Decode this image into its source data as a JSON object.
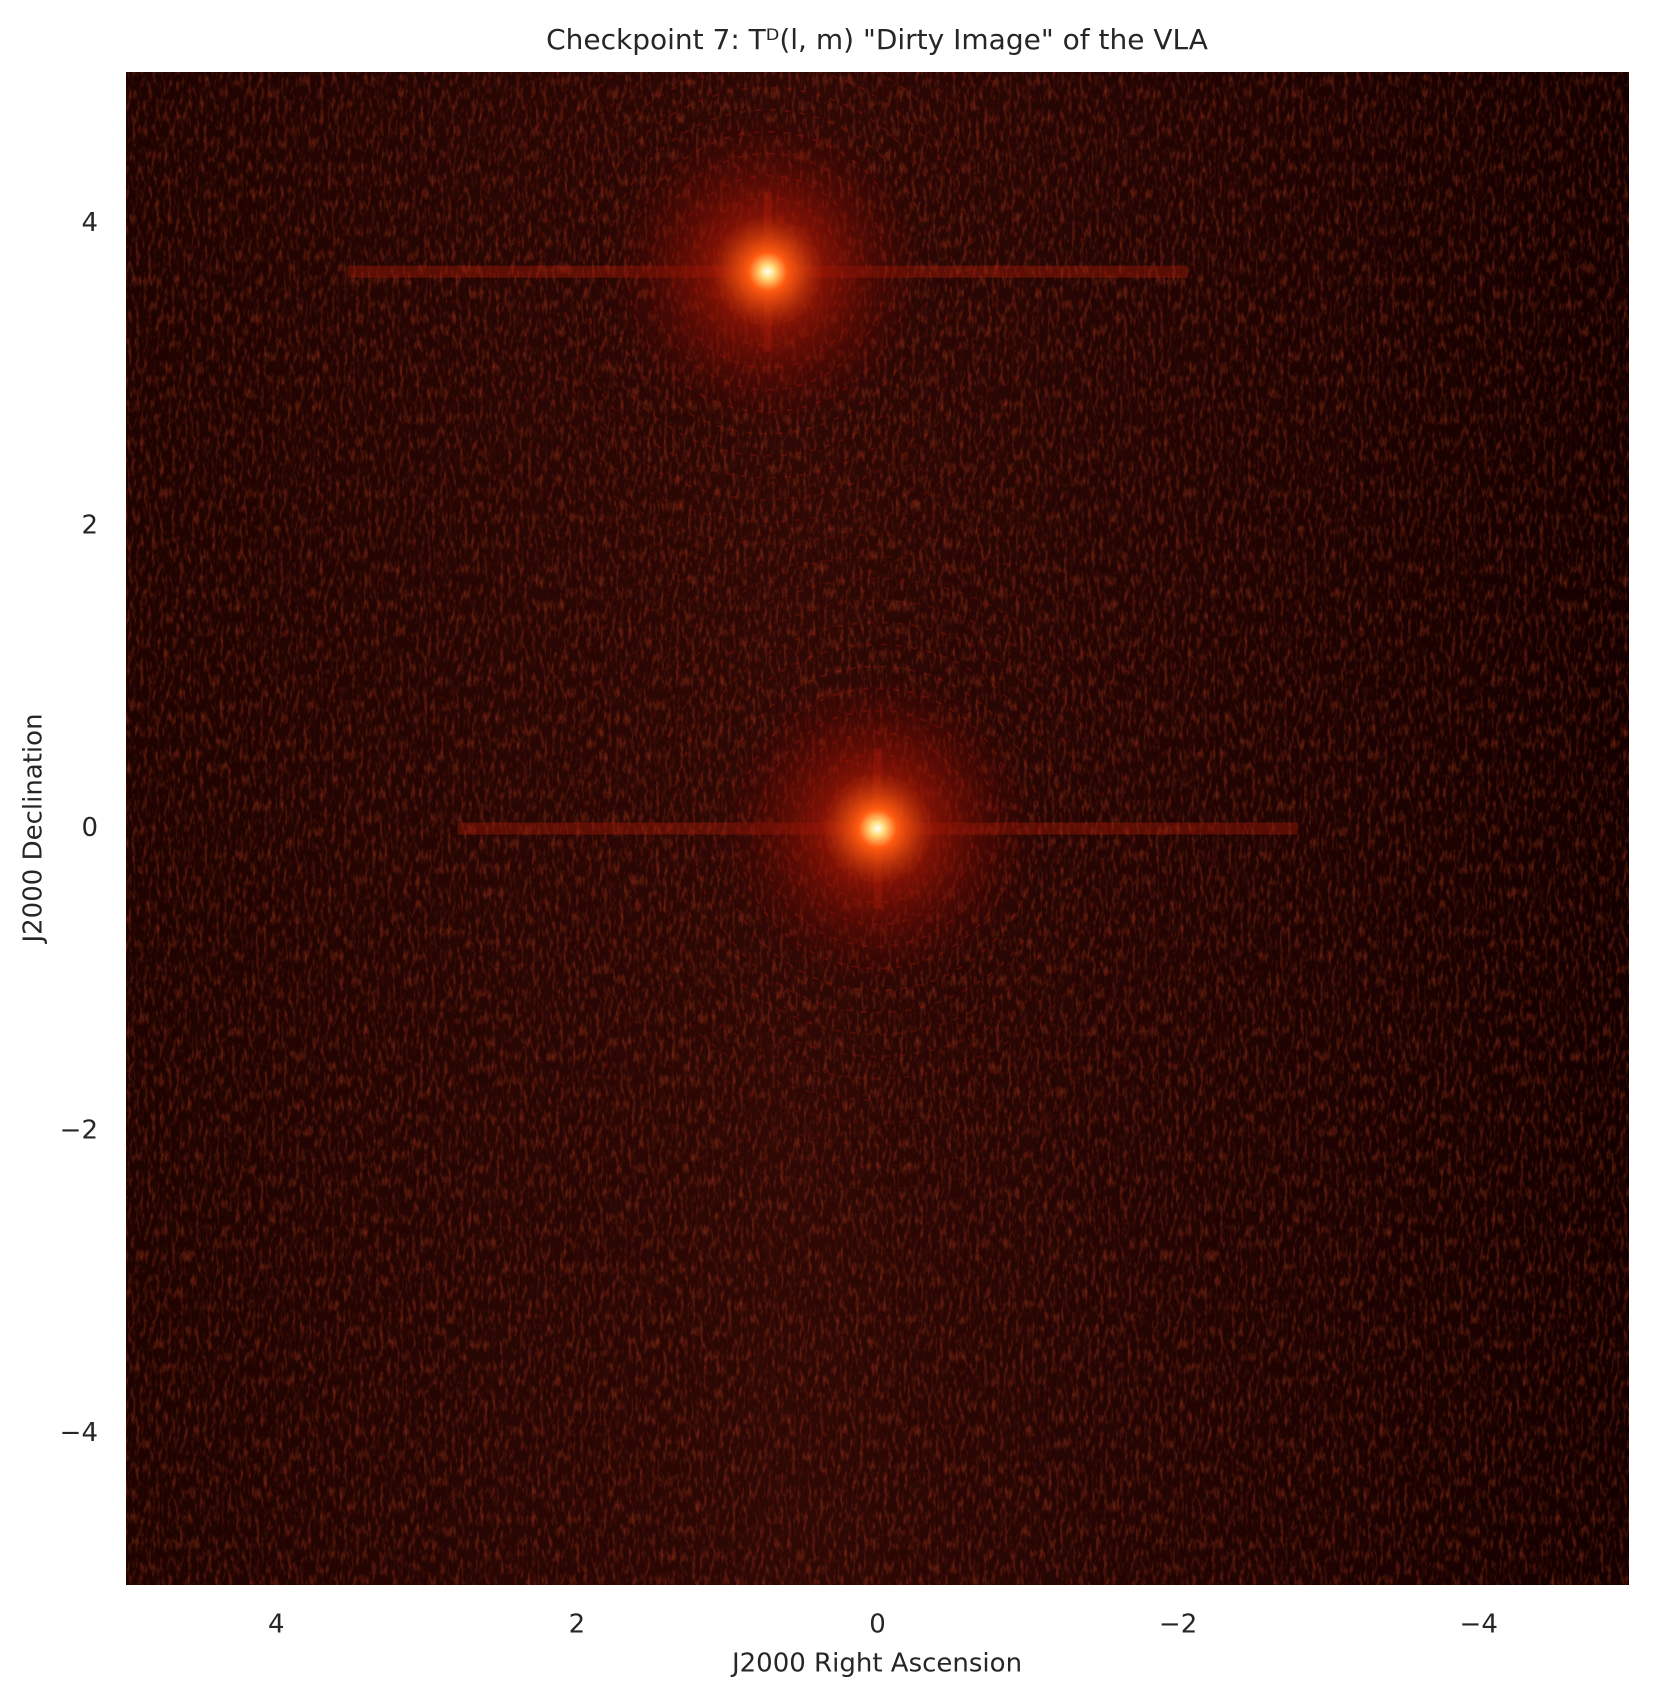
{
  "chart_data": {
    "type": "image",
    "title": "Checkpoint 7: Tᴰ(l, m) \"Dirty Image\" of the VLA",
    "x_label": "J2000 Right Ascension",
    "y_label": "J2000 Declination",
    "x": [
      0,
      0.73
    ],
    "y": [
      0,
      3.68
    ],
    "colormap": "hot",
    "xlim": [
      5,
      -5
    ],
    "ylim": [
      -5,
      5
    ],
    "xticks": [
      4,
      2,
      0,
      {
        "value": -2,
        "label": "−2"
      },
      {
        "value": -4,
        "label": "−4"
      }
    ],
    "yticks": [
      {
        "value": -4,
        "label": "−4"
      },
      {
        "value": -2,
        "label": "−2"
      },
      0,
      2,
      4
    ],
    "grid": false
  }
}
